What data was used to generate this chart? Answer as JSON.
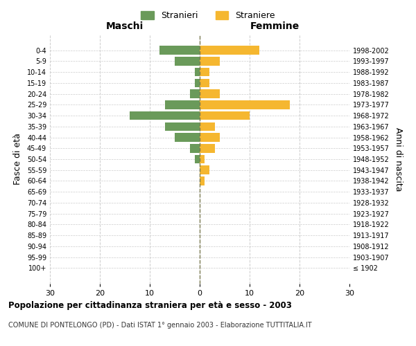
{
  "age_groups": [
    "100+",
    "95-99",
    "90-94",
    "85-89",
    "80-84",
    "75-79",
    "70-74",
    "65-69",
    "60-64",
    "55-59",
    "50-54",
    "45-49",
    "40-44",
    "35-39",
    "30-34",
    "25-29",
    "20-24",
    "15-19",
    "10-14",
    "5-9",
    "0-4"
  ],
  "birth_years": [
    "≤ 1902",
    "1903-1907",
    "1908-1912",
    "1913-1917",
    "1918-1922",
    "1923-1927",
    "1928-1932",
    "1933-1937",
    "1938-1942",
    "1943-1947",
    "1948-1952",
    "1953-1957",
    "1958-1962",
    "1963-1967",
    "1968-1972",
    "1973-1977",
    "1978-1982",
    "1983-1987",
    "1988-1992",
    "1993-1997",
    "1998-2002"
  ],
  "maschi": [
    0,
    0,
    0,
    0,
    0,
    0,
    0,
    0,
    0,
    0,
    1,
    2,
    5,
    7,
    14,
    7,
    2,
    1,
    1,
    5,
    8
  ],
  "femmine": [
    0,
    0,
    0,
    0,
    0,
    0,
    0,
    0,
    1,
    2,
    1,
    3,
    4,
    3,
    10,
    18,
    4,
    2,
    2,
    4,
    12
  ],
  "color_maschi": "#6a9a5a",
  "color_femmine": "#f5b730",
  "xlim": 30,
  "title": "Popolazione per cittadinanza straniera per età e sesso - 2003",
  "subtitle": "COMUNE DI PONTELONGO (PD) - Dati ISTAT 1° gennaio 2003 - Elaborazione TUTTITALIA.IT",
  "ylabel_left": "Fasce di età",
  "ylabel_right": "Anni di nascita",
  "legend_maschi": "Stranieri",
  "legend_femmine": "Straniere",
  "header_left": "Maschi",
  "header_right": "Femmine",
  "bg_color": "#ffffff",
  "grid_color": "#cccccc",
  "bar_height": 0.8
}
